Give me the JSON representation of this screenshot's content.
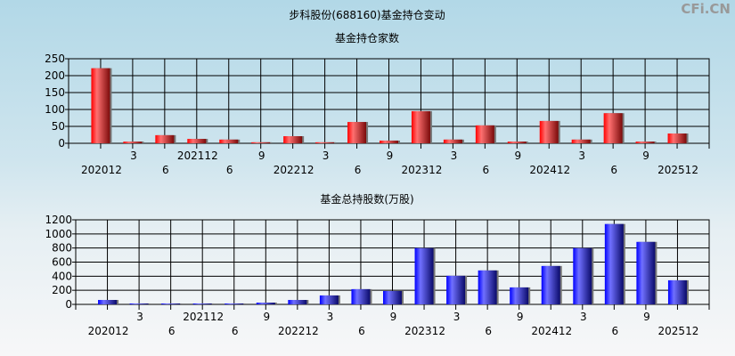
{
  "title": "步科股份(688160)基金持仓变动",
  "watermark": "CFi.CN",
  "colors": {
    "top_bars": "#ff2020",
    "bottom_bars": "#2020ff",
    "grid": "#000000"
  },
  "chart_data": [
    {
      "type": "bar",
      "title": "基金持仓家数",
      "categories": [
        "202012",
        "3",
        "6",
        "202112",
        "6",
        "9",
        "202212",
        "3",
        "6",
        "9",
        "202312",
        "3",
        "6",
        "9",
        "202412",
        "3",
        "6",
        "9",
        "202512"
      ],
      "values": [
        222,
        5,
        24,
        13,
        11,
        3,
        21,
        3,
        63,
        8,
        95,
        11,
        53,
        5,
        66,
        11,
        89,
        5,
        29
      ],
      "yticks": [
        0,
        50,
        100,
        150,
        200,
        250
      ],
      "ylim": [
        0,
        250
      ],
      "grid": true
    },
    {
      "type": "bar",
      "title": "基金总持股数(万股)",
      "categories": [
        "202012",
        "3",
        "6",
        "202112",
        "6",
        "9",
        "202212",
        "3",
        "6",
        "9",
        "202312",
        "3",
        "6",
        "9",
        "202412",
        "3",
        "6",
        "9",
        "202512"
      ],
      "values": [
        63,
        13,
        13,
        13,
        13,
        25,
        63,
        127,
        216,
        190,
        799,
        406,
        482,
        241,
        545,
        799,
        1141,
        887,
        342
      ],
      "yticks": [
        0,
        200,
        400,
        600,
        800,
        1000,
        1200
      ],
      "ylim": [
        0,
        1200
      ],
      "grid": true
    }
  ]
}
